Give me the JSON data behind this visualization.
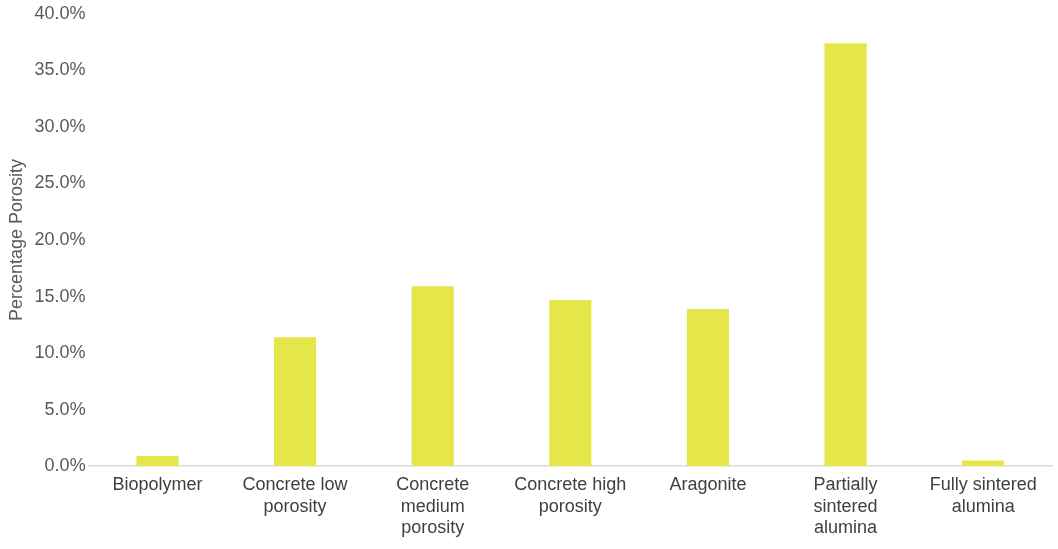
{
  "chart_data": {
    "type": "bar",
    "ylabel": "Percentage Porosity",
    "categories": [
      "Biopolymer",
      "Concrete low porosity",
      "Concrete medium porosity",
      "Concrete high porosity",
      "Aragonite",
      "Partially sintered alumina",
      "Fully sintered alumina"
    ],
    "values": [
      0.9,
      11.4,
      15.9,
      14.7,
      13.9,
      37.4,
      0.5
    ],
    "color": "#e4e649",
    "ylim": [
      0,
      40
    ],
    "yticks": [
      {
        "value": 0,
        "label": "0.0%"
      },
      {
        "value": 5,
        "label": "5.0%"
      },
      {
        "value": 10,
        "label": "10.0%"
      },
      {
        "value": 15,
        "label": "15.0%"
      },
      {
        "value": 20,
        "label": "20.0%"
      },
      {
        "value": 25,
        "label": "25.0%"
      },
      {
        "value": 30,
        "label": "30.0%"
      },
      {
        "value": 35,
        "label": "35.0%"
      },
      {
        "value": 40,
        "label": "40.0%"
      }
    ],
    "grid": false,
    "legend": false
  }
}
